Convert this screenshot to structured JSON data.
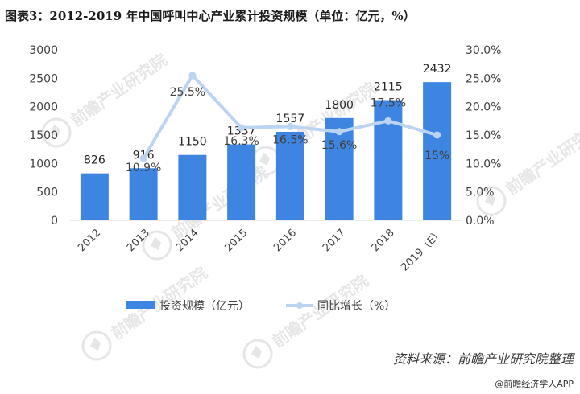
{
  "header": {
    "title": "图表3：2012-2019 年中国呼叫中心产业累计投资规模（单位：亿元，%）"
  },
  "chart_data": {
    "type": "bar",
    "categories": [
      "2012",
      "2013",
      "2014",
      "2015",
      "2016",
      "2017",
      "2018",
      "2019（E）"
    ],
    "series": [
      {
        "name": "投资规模（亿元）",
        "type": "bar",
        "axis": "left",
        "color": "#3d85e0",
        "values": [
          826,
          916,
          1150,
          1337,
          1557,
          1800,
          2115,
          2432
        ],
        "labels": [
          "826",
          "916",
          "1150",
          "1337",
          "1557",
          "1800",
          "2115",
          "2432"
        ]
      },
      {
        "name": "同比增长（%）",
        "type": "line",
        "axis": "right",
        "color": "#bcd4f2",
        "values": [
          null,
          10.9,
          25.5,
          16.3,
          16.5,
          15.6,
          17.5,
          15
        ],
        "labels": [
          "",
          "10.9%",
          "25.5%",
          "16.3%",
          "16.5%",
          "15.6%",
          "17.5%",
          "15%"
        ]
      }
    ],
    "y_left": {
      "min": 0,
      "max": 3000,
      "step": 500,
      "tick_labels": [
        "0",
        "500",
        "1000",
        "1500",
        "2000",
        "2500",
        "3000"
      ]
    },
    "y_right": {
      "min": 0,
      "max": 30,
      "step": 5,
      "tick_labels": [
        "0.0%",
        "5.0%",
        "10.0%",
        "15.0%",
        "20.0%",
        "25.0%",
        "30.0%"
      ]
    },
    "grid": false,
    "legend": "bottom"
  },
  "footer": {
    "source": "资料来源：前瞻产业研究院整理",
    "credit": "@前瞻经济学人APP"
  },
  "watermark": "前瞻产业研究院"
}
